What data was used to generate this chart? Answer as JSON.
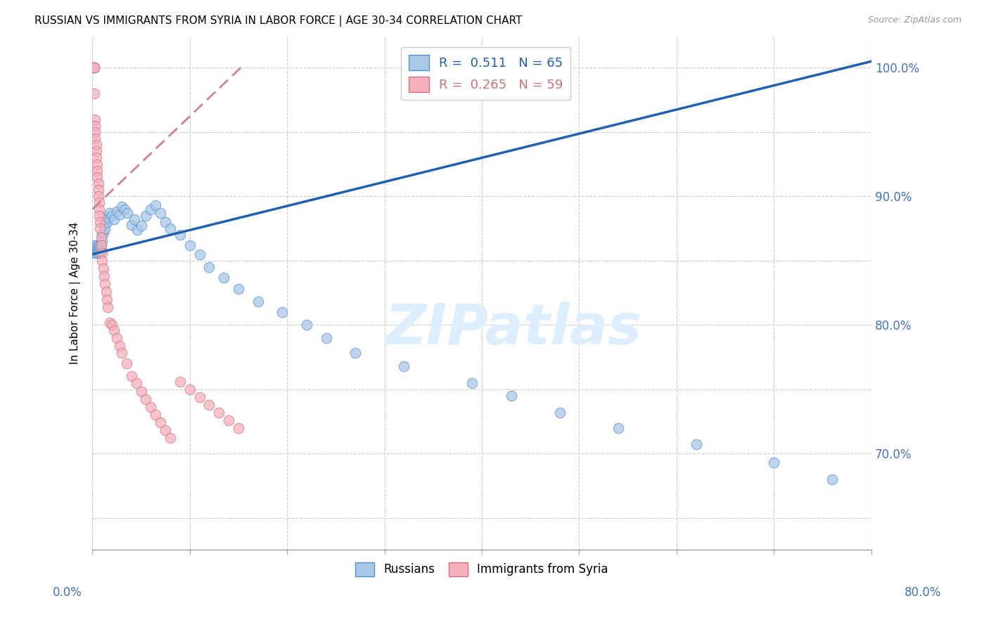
{
  "title": "RUSSIAN VS IMMIGRANTS FROM SYRIA IN LABOR FORCE | AGE 30-34 CORRELATION CHART",
  "source": "Source: ZipAtlas.com",
  "ylabel": "In Labor Force | Age 30-34",
  "legend_blue_label": "R =  0.511   N = 65",
  "legend_pink_label": "R =  0.265   N = 59",
  "legend_russians": "Russians",
  "legend_syria": "Immigrants from Syria",
  "blue_fill": "#a8c8e8",
  "blue_edge": "#5590c8",
  "pink_fill": "#f5b0bc",
  "pink_edge": "#d07080",
  "blue_line": "#2060b0",
  "pink_line": "#d08090",
  "watermark_color": "#ddeeff",
  "tick_color": "#4472c4",
  "xmin": 0.0,
  "xmax": 0.8,
  "ymin": 0.625,
  "ymax": 1.025,
  "blue_x": [
    0.001,
    0.002,
    0.002,
    0.003,
    0.003,
    0.003,
    0.004,
    0.004,
    0.004,
    0.005,
    0.005,
    0.005,
    0.006,
    0.006,
    0.007,
    0.007,
    0.008,
    0.008,
    0.009,
    0.009,
    0.01,
    0.01,
    0.011,
    0.012,
    0.013,
    0.014,
    0.015,
    0.016,
    0.018,
    0.02,
    0.022,
    0.025,
    0.028,
    0.03,
    0.033,
    0.036,
    0.04,
    0.043,
    0.046,
    0.05,
    0.055,
    0.06,
    0.065,
    0.07,
    0.075,
    0.08,
    0.09,
    0.1,
    0.11,
    0.12,
    0.135,
    0.15,
    0.17,
    0.195,
    0.22,
    0.24,
    0.27,
    0.32,
    0.39,
    0.43,
    0.48,
    0.54,
    0.62,
    0.7,
    0.76
  ],
  "blue_y": [
    0.858,
    0.862,
    0.857,
    0.86,
    0.857,
    0.856,
    0.858,
    0.862,
    0.857,
    0.86,
    0.858,
    0.856,
    0.861,
    0.857,
    0.862,
    0.857,
    0.86,
    0.856,
    0.858,
    0.862,
    0.87,
    0.865,
    0.872,
    0.878,
    0.875,
    0.882,
    0.88,
    0.884,
    0.887,
    0.885,
    0.882,
    0.888,
    0.886,
    0.892,
    0.89,
    0.887,
    0.878,
    0.882,
    0.874,
    0.877,
    0.885,
    0.89,
    0.893,
    0.887,
    0.88,
    0.875,
    0.87,
    0.862,
    0.855,
    0.845,
    0.837,
    0.828,
    0.818,
    0.81,
    0.8,
    0.79,
    0.778,
    0.768,
    0.755,
    0.745,
    0.732,
    0.72,
    0.707,
    0.693,
    0.68
  ],
  "pink_x": [
    0.001,
    0.001,
    0.001,
    0.001,
    0.002,
    0.002,
    0.002,
    0.002,
    0.003,
    0.003,
    0.003,
    0.003,
    0.004,
    0.004,
    0.004,
    0.005,
    0.005,
    0.005,
    0.006,
    0.006,
    0.006,
    0.007,
    0.007,
    0.007,
    0.008,
    0.008,
    0.009,
    0.009,
    0.01,
    0.01,
    0.011,
    0.012,
    0.013,
    0.014,
    0.015,
    0.016,
    0.018,
    0.02,
    0.022,
    0.025,
    0.028,
    0.03,
    0.035,
    0.04,
    0.045,
    0.05,
    0.055,
    0.06,
    0.065,
    0.07,
    0.075,
    0.08,
    0.09,
    0.1,
    0.11,
    0.12,
    0.13,
    0.14,
    0.15
  ],
  "pink_y": [
    1.0,
    1.0,
    1.0,
    1.0,
    1.0,
    1.0,
    1.0,
    0.98,
    0.96,
    0.955,
    0.95,
    0.945,
    0.94,
    0.935,
    0.93,
    0.925,
    0.92,
    0.915,
    0.91,
    0.905,
    0.9,
    0.895,
    0.89,
    0.885,
    0.88,
    0.875,
    0.868,
    0.862,
    0.856,
    0.85,
    0.844,
    0.838,
    0.832,
    0.826,
    0.82,
    0.814,
    0.802,
    0.8,
    0.796,
    0.79,
    0.784,
    0.778,
    0.77,
    0.76,
    0.755,
    0.748,
    0.742,
    0.736,
    0.73,
    0.724,
    0.718,
    0.712,
    0.756,
    0.75,
    0.744,
    0.738,
    0.732,
    0.726,
    0.72
  ],
  "blue_trendline_x": [
    0.0,
    0.8
  ],
  "blue_trendline_y": [
    0.855,
    1.005
  ],
  "pink_trendline_x": [
    0.0,
    0.155
  ],
  "pink_trendline_y": [
    0.89,
    1.002
  ]
}
